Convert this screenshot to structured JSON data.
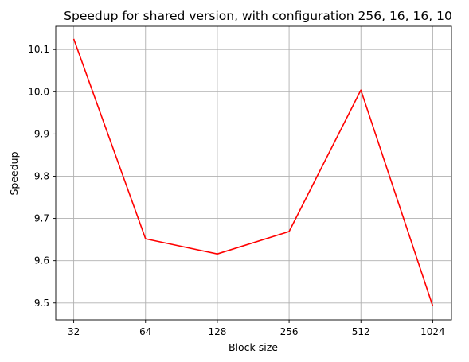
{
  "chart_data": {
    "type": "line",
    "title": "Speedup for shared version, with configuration 256, 16, 16, 10",
    "xlabel": "Block size",
    "ylabel": "Speedup",
    "categories": [
      "32",
      "64",
      "128",
      "256",
      "512",
      "1024"
    ],
    "series": [
      {
        "values": [
          10.125,
          9.652,
          9.616,
          9.669,
          10.004,
          9.493
        ],
        "color": "#ff0000"
      }
    ],
    "ylim": [
      9.46,
      10.155
    ],
    "yticks": [
      9.5,
      9.6,
      9.7,
      9.8,
      9.9,
      10.0,
      10.1
    ],
    "ytick_labels": [
      "9.5",
      "9.6",
      "9.7",
      "9.8",
      "9.9",
      "10.0",
      "10.1"
    ],
    "grid": true,
    "legend": "none"
  }
}
